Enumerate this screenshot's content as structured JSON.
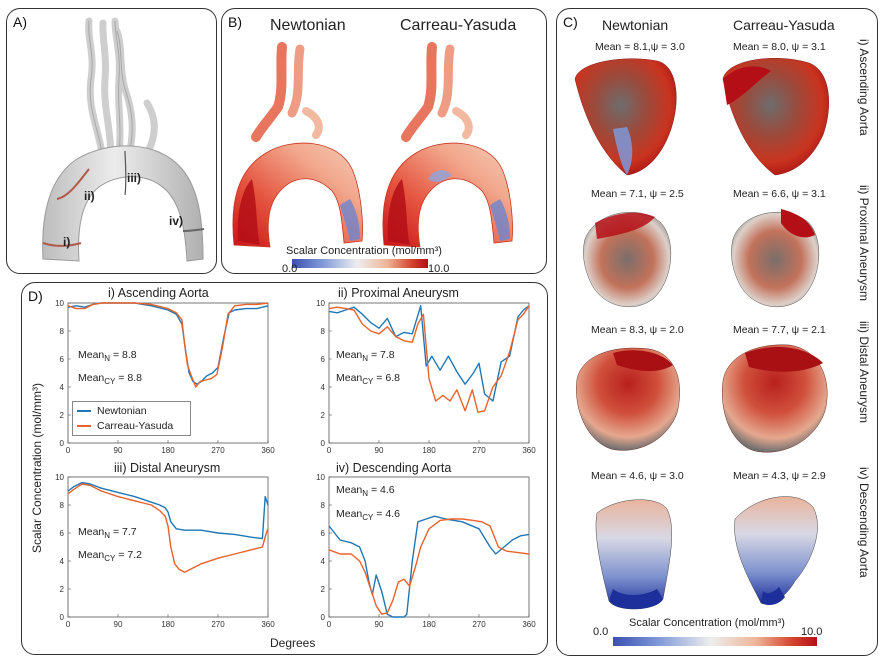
{
  "panel_a": {
    "letter": "A)",
    "labels": [
      "i)",
      "ii)",
      "iii)",
      "iv)"
    ]
  },
  "panel_b": {
    "letter": "B)",
    "titles": [
      "Newtonian",
      "Carreau-Yasuda"
    ],
    "colorbar": {
      "label": "Scalar Concentration (mol/mm³)",
      "min": "0.0",
      "max": "10.0"
    }
  },
  "panel_c": {
    "letter": "C)",
    "columns": [
      "Newtonian",
      "Carreau-Yasuda"
    ],
    "rows": [
      {
        "label": "i) Ascending Aorta",
        "newtonian": "Mean = 8.1,ψ = 3.0",
        "carreau": "Mean = 8.0, ψ = 3.1"
      },
      {
        "label": "ii) Proximal Aneurysm",
        "newtonian": "Mean = 7.1, ψ = 2.5",
        "carreau": "Mean = 6.6, ψ = 3.1"
      },
      {
        "label": "iii) Distal Aneurysm",
        "newtonian": "Mean = 8.3, ψ = 2.0",
        "carreau": "Mean = 7.7, ψ = 2.1"
      },
      {
        "label": "iv) Descending Aorta",
        "newtonian": "Mean = 4.6, ψ = 3.0",
        "carreau": "Mean = 4.3, ψ = 2.9"
      }
    ],
    "colorbar": {
      "label": "Scalar Concentration (mol/mm³)",
      "min": "0.0",
      "max": "10.0"
    }
  },
  "panel_d": {
    "letter": "D)",
    "ylabel": "Scalar Concentration (mol/mm³)",
    "xlabel": "Degrees",
    "legend": [
      "Newtonian",
      "Carreau-Yasuda"
    ],
    "colors": {
      "newtonian": "#1f77b4",
      "carreau": "#e8622c"
    }
  },
  "chart_data": [
    {
      "type": "line",
      "title": "i) Ascending Aorta",
      "xlim": [
        0,
        360
      ],
      "ylim": [
        0,
        10
      ],
      "xticks": [
        "0",
        "90",
        "180",
        "270",
        "360"
      ],
      "yticks": [
        "0",
        "2",
        "4",
        "6",
        "8",
        "10"
      ],
      "annotations": [
        "Mean",
        "N",
        " = 8.8",
        "Mean",
        "CY",
        " = 8.8"
      ],
      "series": [
        {
          "name": "Newtonian",
          "x": [
            0,
            15,
            30,
            45,
            60,
            90,
            120,
            150,
            180,
            195,
            205,
            212,
            218,
            225,
            232,
            240,
            250,
            260,
            270,
            280,
            290,
            300,
            320,
            340,
            360
          ],
          "y": [
            9.7,
            9.8,
            9.7,
            9.9,
            10,
            10,
            10,
            9.8,
            9.5,
            9.2,
            8.5,
            6.5,
            5.0,
            4.4,
            4.2,
            4.4,
            4.8,
            5.0,
            5.4,
            7.5,
            9.3,
            9.5,
            9.6,
            9.6,
            9.8
          ]
        },
        {
          "name": "Carreau-Yasuda",
          "x": [
            0,
            15,
            30,
            45,
            60,
            90,
            120,
            150,
            180,
            195,
            205,
            210,
            215,
            222,
            230,
            238,
            248,
            258,
            268,
            278,
            288,
            300,
            320,
            340,
            360
          ],
          "y": [
            9.8,
            9.6,
            9.6,
            9.9,
            10,
            10,
            10,
            9.9,
            9.6,
            9.3,
            8.8,
            7.0,
            5.6,
            4.8,
            4.0,
            4.4,
            4.5,
            4.6,
            4.9,
            6.8,
            9.2,
            9.8,
            9.9,
            9.9,
            10
          ]
        }
      ]
    },
    {
      "type": "line",
      "title": "ii) Proximal Aneurysm",
      "xlim": [
        0,
        360
      ],
      "ylim": [
        0,
        10
      ],
      "xticks": [
        "0",
        "90",
        "180",
        "270",
        "360"
      ],
      "yticks": [
        "0",
        "2",
        "4",
        "6",
        "8",
        "10"
      ],
      "annotations": [
        "Mean",
        "N",
        " = 7.8",
        "Mean",
        "CY",
        " = 6.8"
      ],
      "series": [
        {
          "name": "Newtonian",
          "x": [
            0,
            15,
            30,
            45,
            60,
            75,
            90,
            105,
            120,
            135,
            150,
            165,
            175,
            185,
            200,
            215,
            230,
            245,
            260,
            270,
            280,
            295,
            310,
            325,
            340,
            350,
            360
          ],
          "y": [
            9.4,
            9.3,
            9.5,
            9.7,
            9.2,
            8.6,
            8.2,
            8.9,
            7.6,
            7.9,
            7.8,
            9.8,
            5.5,
            6.2,
            5.2,
            6.2,
            5.1,
            4.2,
            5.0,
            5.7,
            3.5,
            3.0,
            5.8,
            6.2,
            9.0,
            9.5,
            9.8
          ]
        },
        {
          "name": "Carreau-Yasuda",
          "x": [
            0,
            15,
            30,
            45,
            60,
            75,
            90,
            105,
            120,
            135,
            150,
            160,
            170,
            180,
            192,
            205,
            218,
            230,
            245,
            258,
            268,
            280,
            295,
            310,
            325,
            340,
            350,
            360
          ],
          "y": [
            9.6,
            9.7,
            9.6,
            9.5,
            8.5,
            8.0,
            7.8,
            8.3,
            7.6,
            7.3,
            7.2,
            8.5,
            9.2,
            4.6,
            3.0,
            3.4,
            3.0,
            3.8,
            2.3,
            3.8,
            2.2,
            2.3,
            4.0,
            4.8,
            6.5,
            8.8,
            9.2,
            9.8
          ]
        }
      ]
    },
    {
      "type": "line",
      "title": "iii) Distal Aneurysm",
      "xlim": [
        0,
        360
      ],
      "ylim": [
        0,
        10
      ],
      "xticks": [
        "0",
        "90",
        "180",
        "270",
        "360"
      ],
      "yticks": [
        "0",
        "2",
        "4",
        "6",
        "8",
        "10"
      ],
      "annotations": [
        "Mean",
        "N",
        " = 7.7",
        "Mean",
        "CY",
        " = 7.2"
      ],
      "series": [
        {
          "name": "Newtonian",
          "x": [
            0,
            10,
            25,
            40,
            60,
            90,
            120,
            150,
            165,
            175,
            180,
            185,
            195,
            210,
            240,
            270,
            300,
            330,
            350,
            355,
            360
          ],
          "y": [
            9.0,
            9.3,
            9.6,
            9.5,
            9.2,
            8.9,
            8.6,
            8.2,
            8.0,
            7.8,
            7.5,
            6.8,
            6.3,
            6.2,
            6.2,
            6.0,
            5.9,
            5.7,
            5.6,
            8.6,
            8.0
          ]
        },
        {
          "name": "Carreau-Yasuda",
          "x": [
            0,
            10,
            25,
            40,
            60,
            90,
            120,
            150,
            165,
            175,
            180,
            185,
            192,
            200,
            210,
            220,
            240,
            270,
            300,
            330,
            350,
            357,
            360
          ],
          "y": [
            8.8,
            9.1,
            9.5,
            9.4,
            9.0,
            8.6,
            8.3,
            8.0,
            7.6,
            7.2,
            6.5,
            5.0,
            3.8,
            3.4,
            3.2,
            3.4,
            3.8,
            4.2,
            4.5,
            4.8,
            5.0,
            6.0,
            6.3
          ]
        }
      ]
    },
    {
      "type": "line",
      "title": "iv) Descending Aorta",
      "xlim": [
        0,
        360
      ],
      "ylim": [
        0,
        10
      ],
      "xticks": [
        "0",
        "90",
        "180",
        "270",
        "360"
      ],
      "yticks": [
        "0",
        "2",
        "4",
        "6",
        "8",
        "10"
      ],
      "annotations": [
        "Mean",
        "N",
        " = 4.6",
        "Mean",
        "CY",
        " = 4.6"
      ],
      "series": [
        {
          "name": "Newtonian",
          "x": [
            0,
            20,
            40,
            55,
            65,
            72,
            78,
            85,
            95,
            105,
            115,
            125,
            135,
            140,
            150,
            160,
            175,
            190,
            210,
            240,
            270,
            290,
            300,
            315,
            330,
            345,
            360
          ],
          "y": [
            6.5,
            5.5,
            5.3,
            5.0,
            4.0,
            2.5,
            1.6,
            3.0,
            1.8,
            0.2,
            0.0,
            0.0,
            0.0,
            0.2,
            4.0,
            6.8,
            7.0,
            7.2,
            7.0,
            6.8,
            6.3,
            5.0,
            4.5,
            5.0,
            5.5,
            5.8,
            5.9
          ]
        },
        {
          "name": "Carreau-Yasuda",
          "x": [
            0,
            20,
            40,
            55,
            65,
            75,
            85,
            95,
            105,
            115,
            125,
            135,
            145,
            155,
            165,
            180,
            200,
            220,
            240,
            260,
            275,
            290,
            305,
            320,
            340,
            360
          ],
          "y": [
            4.8,
            4.5,
            4.5,
            4.0,
            3.2,
            2.0,
            0.8,
            0.2,
            0.3,
            1.2,
            2.5,
            2.7,
            2.2,
            3.5,
            5.0,
            6.3,
            6.9,
            7.0,
            7.0,
            6.9,
            6.8,
            6.5,
            5.0,
            4.7,
            4.6,
            4.5
          ]
        }
      ]
    }
  ]
}
